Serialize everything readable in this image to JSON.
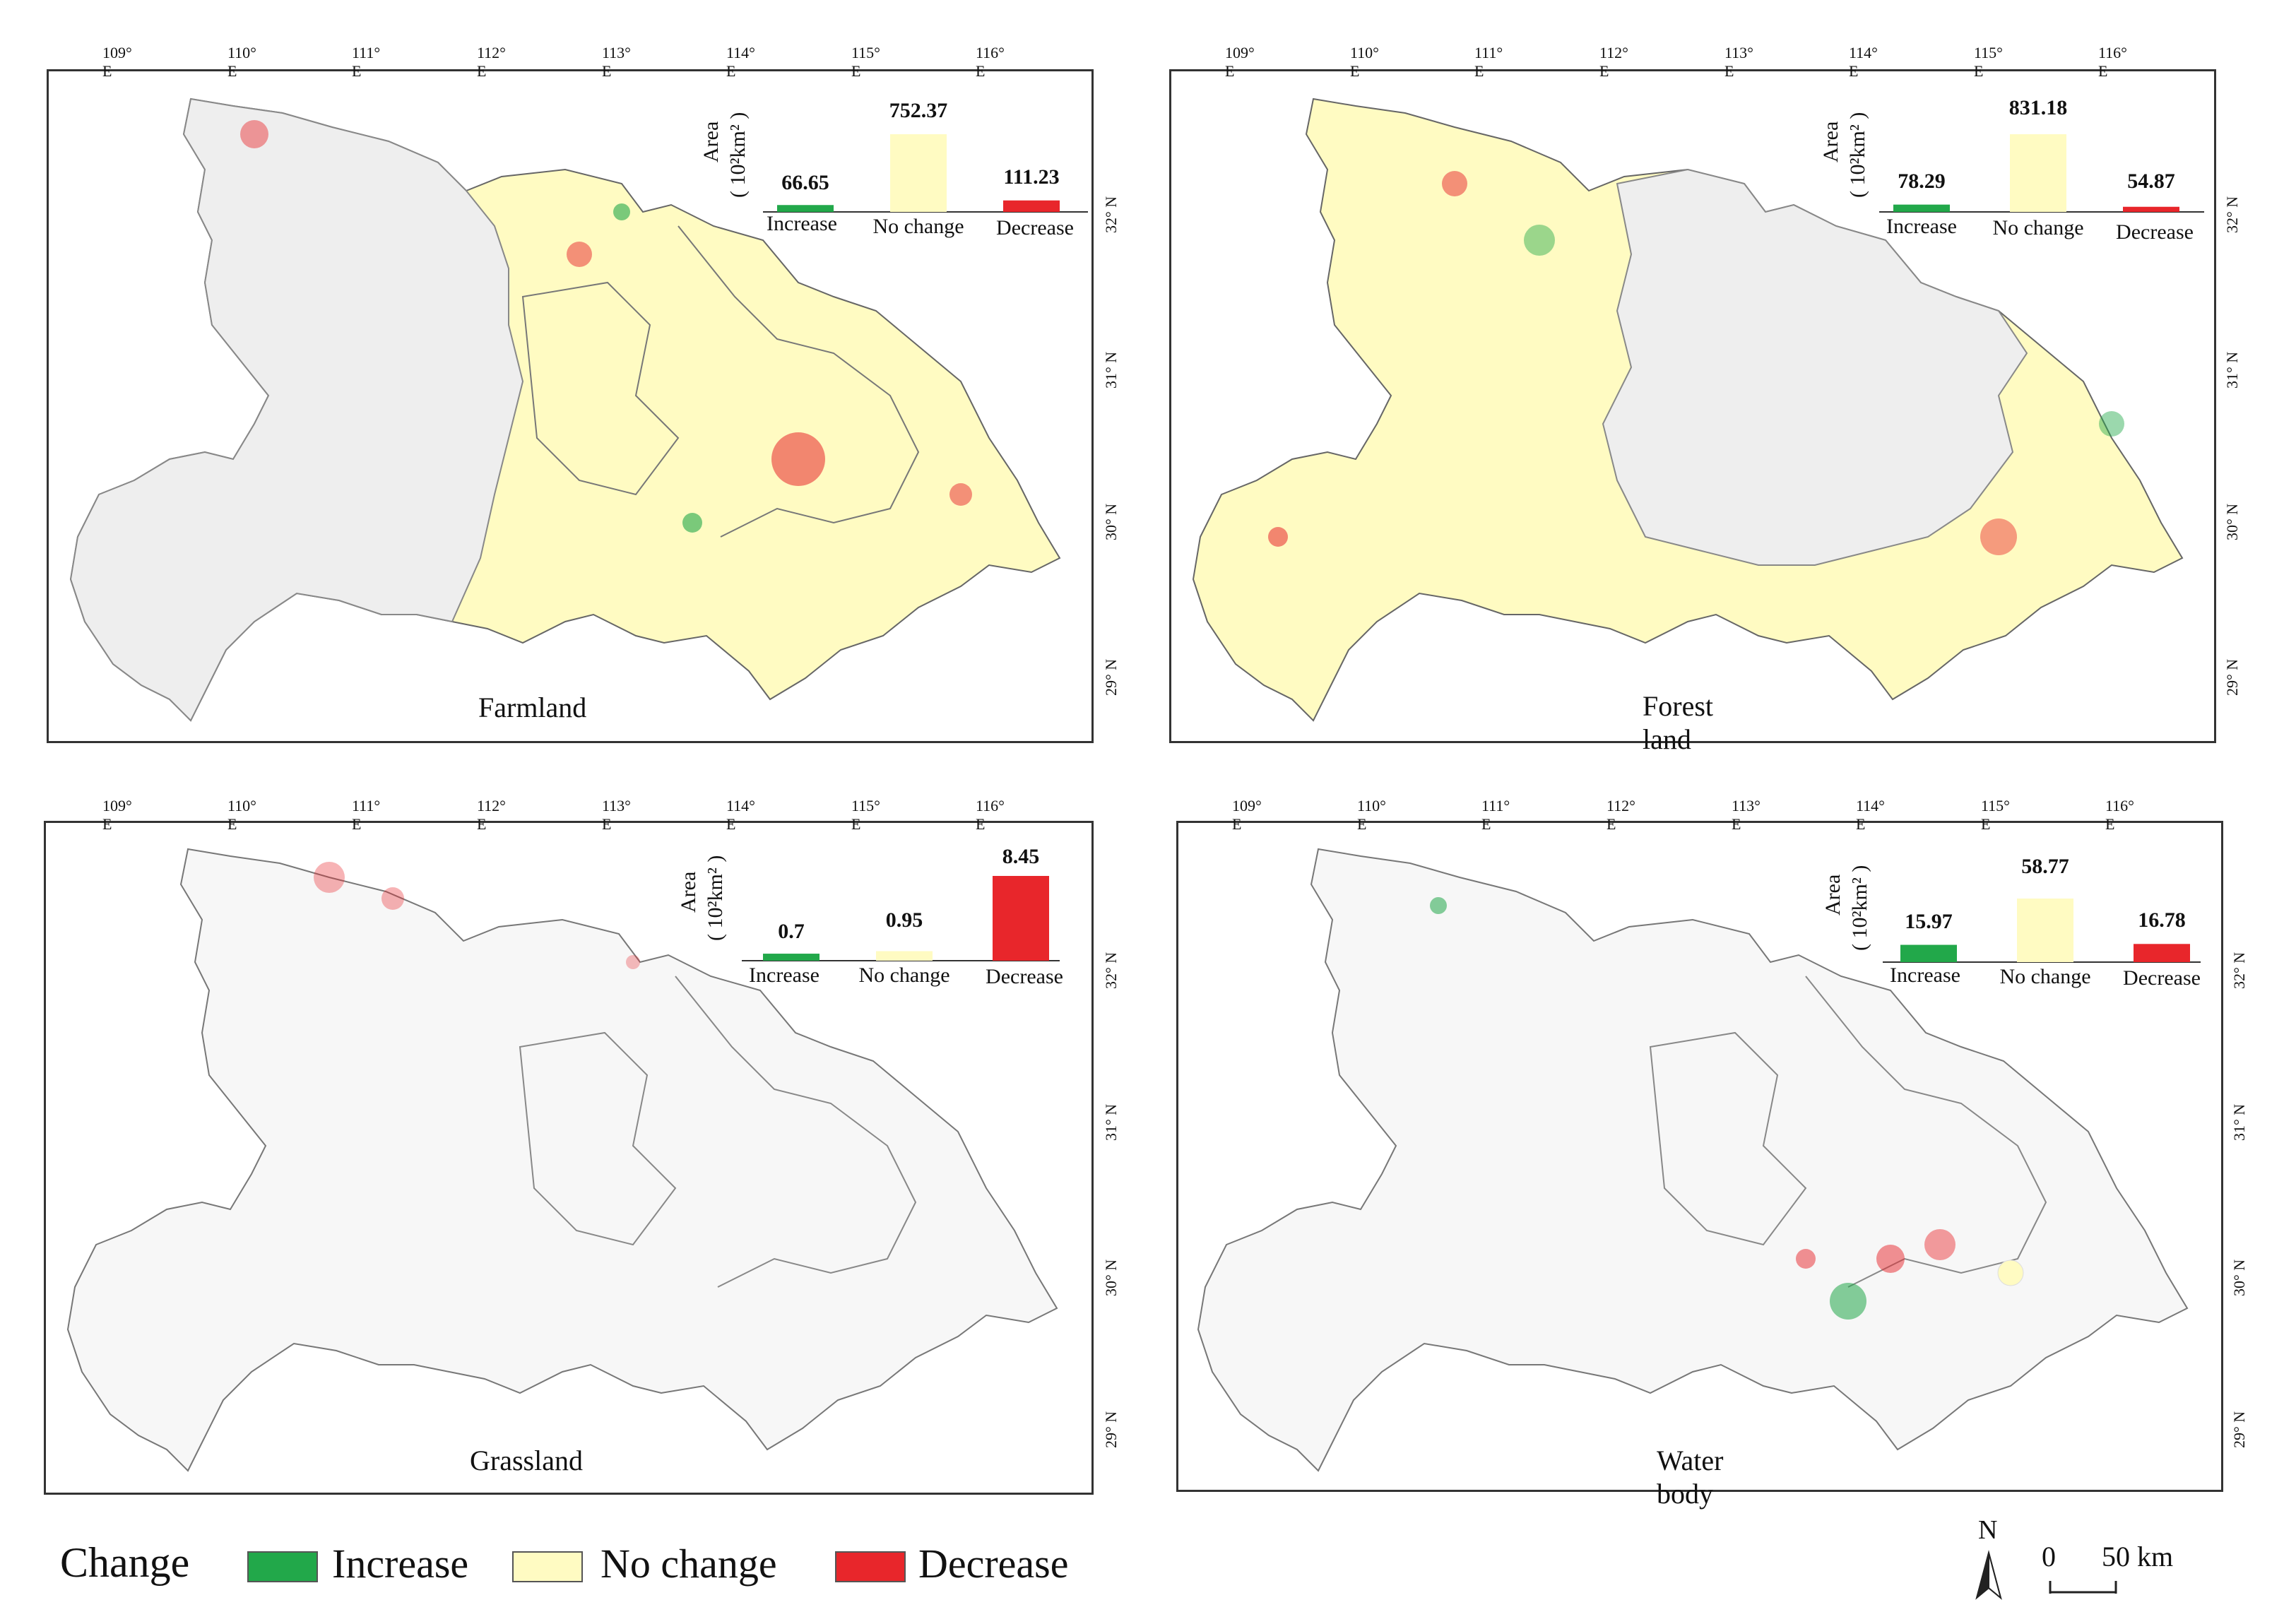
{
  "legend": {
    "title": "Change",
    "items": [
      {
        "label": "Increase",
        "color": "#22a84a"
      },
      {
        "label": "No change",
        "color": "#fffbc2"
      },
      {
        "label": "Decrease",
        "color": "#e8262b"
      }
    ]
  },
  "scale_bar": {
    "north_label": "N",
    "zero": "0",
    "distance": "50 km"
  },
  "axes": {
    "lon_ticks": [
      "109° E",
      "110° E",
      "111° E",
      "112° E",
      "113° E",
      "114° E",
      "115° E",
      "116° E"
    ],
    "lat_ticks": [
      "32° N",
      "31° N",
      "30° N",
      "29° N"
    ]
  },
  "inset_common": {
    "area_label_top": "Area",
    "area_label_bottom": "( 10²km² )",
    "categories": [
      "Increase",
      "No change",
      "Decrease"
    ]
  },
  "panels": [
    {
      "title": "Farmland",
      "values": [
        66.65,
        752.37,
        111.23
      ],
      "value_labels": [
        "66.65",
        "752.37",
        "111.23"
      ]
    },
    {
      "title": "Forest land",
      "values": [
        78.29,
        831.18,
        54.87
      ],
      "value_labels": [
        "78.29",
        "831.18",
        "54.87"
      ]
    },
    {
      "title": "Grassland",
      "values": [
        0.7,
        0.95,
        8.45
      ],
      "value_labels": [
        "0.7",
        "0.95",
        "8.45"
      ]
    },
    {
      "title": "Water body",
      "values": [
        15.97,
        58.77,
        16.78
      ],
      "value_labels": [
        "15.97",
        "58.77",
        "16.78"
      ]
    }
  ]
}
